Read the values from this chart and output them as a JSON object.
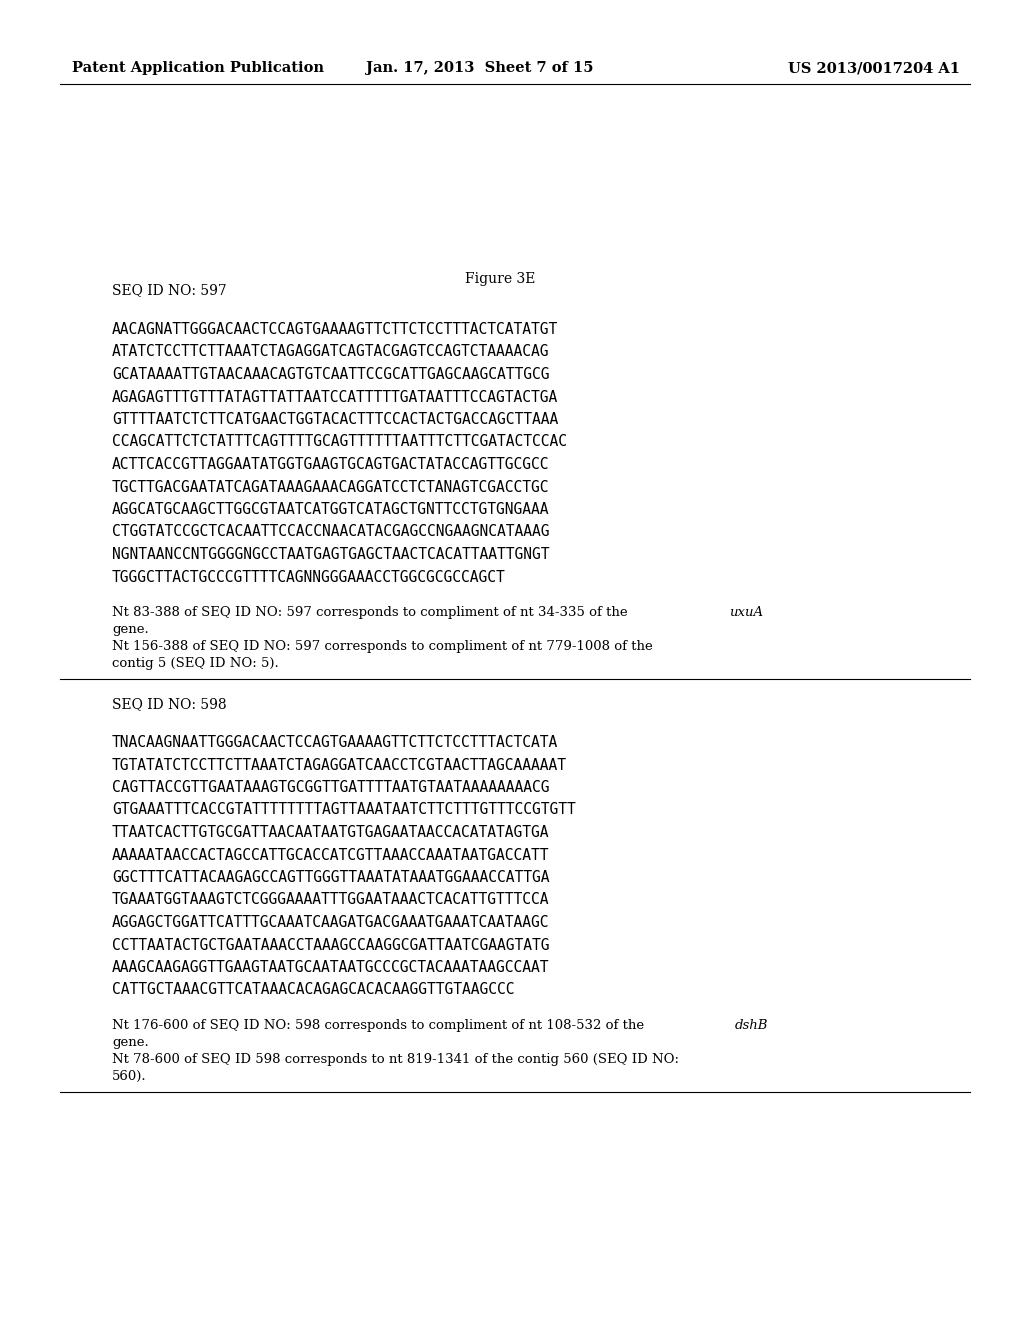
{
  "background_color": "#ffffff",
  "header_left": "Patent Application Publication",
  "header_mid": "Jan. 17, 2013  Sheet 7 of 15",
  "header_right": "US 2013/0017204 A1",
  "figure_label": "Figure 3E",
  "seq1_label": "SEQ ID NO: 597",
  "seq1_lines": [
    "AACAGNATTGGGACAACTCCAGTGAAAAGTTCTTCTCCTTTACTCATATGT",
    "ATATCTCCTTCTTAAATCTAGAGGATCAGTACGAGTCCAGTCTAAAACAG",
    "GCATAAAATTGTAACAAACAGTGTCAATTCCGCATTGAGCAAGCATTGCG",
    "AGAGAGTTTGTTTATAGTTATTAATCCATTTTTGATAATTTCCAGTACTGA",
    "GTTTTAATCTCTTCATGAACTGGTACACTTTCCACTACTGACCAGCTTAAA",
    "CCAGCATTCTCTATTTCAGTTTTGCAGTTTTTTAATTTCTTCGATACTCCAC",
    "ACTTCACCGTTAGGAATATGGTGAAGTGCAGTGACTATACCAGTTGCGCC",
    "TGCTTGACGAATATCAGATAAAGAAACAGGATCCTCTANAGTCGACCTGC",
    "AGGCATGCAAGCTTGGCGTAATCATGGTCATAGCTGNTTCCTGTGNGAAA",
    "CTGGTATCCGCTCACAATTCCACCNAACATACGAGCCNGAAGNCATAAAG",
    "NGNTAANCCNTGGGGNGCCTAATGAGTGAGCTAACTCACATTAATTGNGT",
    "TGGGCTTACTGCCCGTTTTCAGNNGGGAAACCTGGCGCGCCAGCT"
  ],
  "seq2_label": "SEQ ID NO: 598",
  "seq2_lines": [
    "TNACAAGNAATTGGGACAACTCCAGTGAAAAGTTCTTCTCCTTTACTCATA",
    "TGTATATCTCCTTCTTAAATCTAGAGGATCAACCTCGTAACTTAGCAAAAAT",
    "CAGTTACCGTTGAATAAAGTGCGGTTGATTTTAATGTAATAAAAAAAACG",
    "GTGAAATTTCACCGTATTTTTTTTAGTTAAATAATCTTCTTTGTTTCCGTGTT",
    "TTAATCACTTGTGCGATTAACAATAATGTGAGAATAACCACATATAGTGA",
    "AAAAATAACCACTAGCCATTGCACCATCGTTAAACCAAATAATGACCATT",
    "GGCTTTCATTACAAGAGCCAGTTGGGTTAAATATAAATGGAAACCATTGA",
    "TGAAATGGTAAAGTCTCGGGAAAATTTGGAATAAACTCACATTGTTTCCA",
    "AGGAGCTGGATTCATTTGCAAATCAAGATGACGAAATGAAATCAATAAGC",
    "CCTTAATACTGCTGAATAAACCTAAAGCCAAGGCGATTAATCGAAGTATG",
    "AAAGCAAGAGGTTGAAGTAATGCAATAATGCCCGCTACAAATAAGCCAAT",
    "CATTGCTAAACGTTCATAAACACAGAGCACACAAGGTTGTAAGCCC"
  ]
}
